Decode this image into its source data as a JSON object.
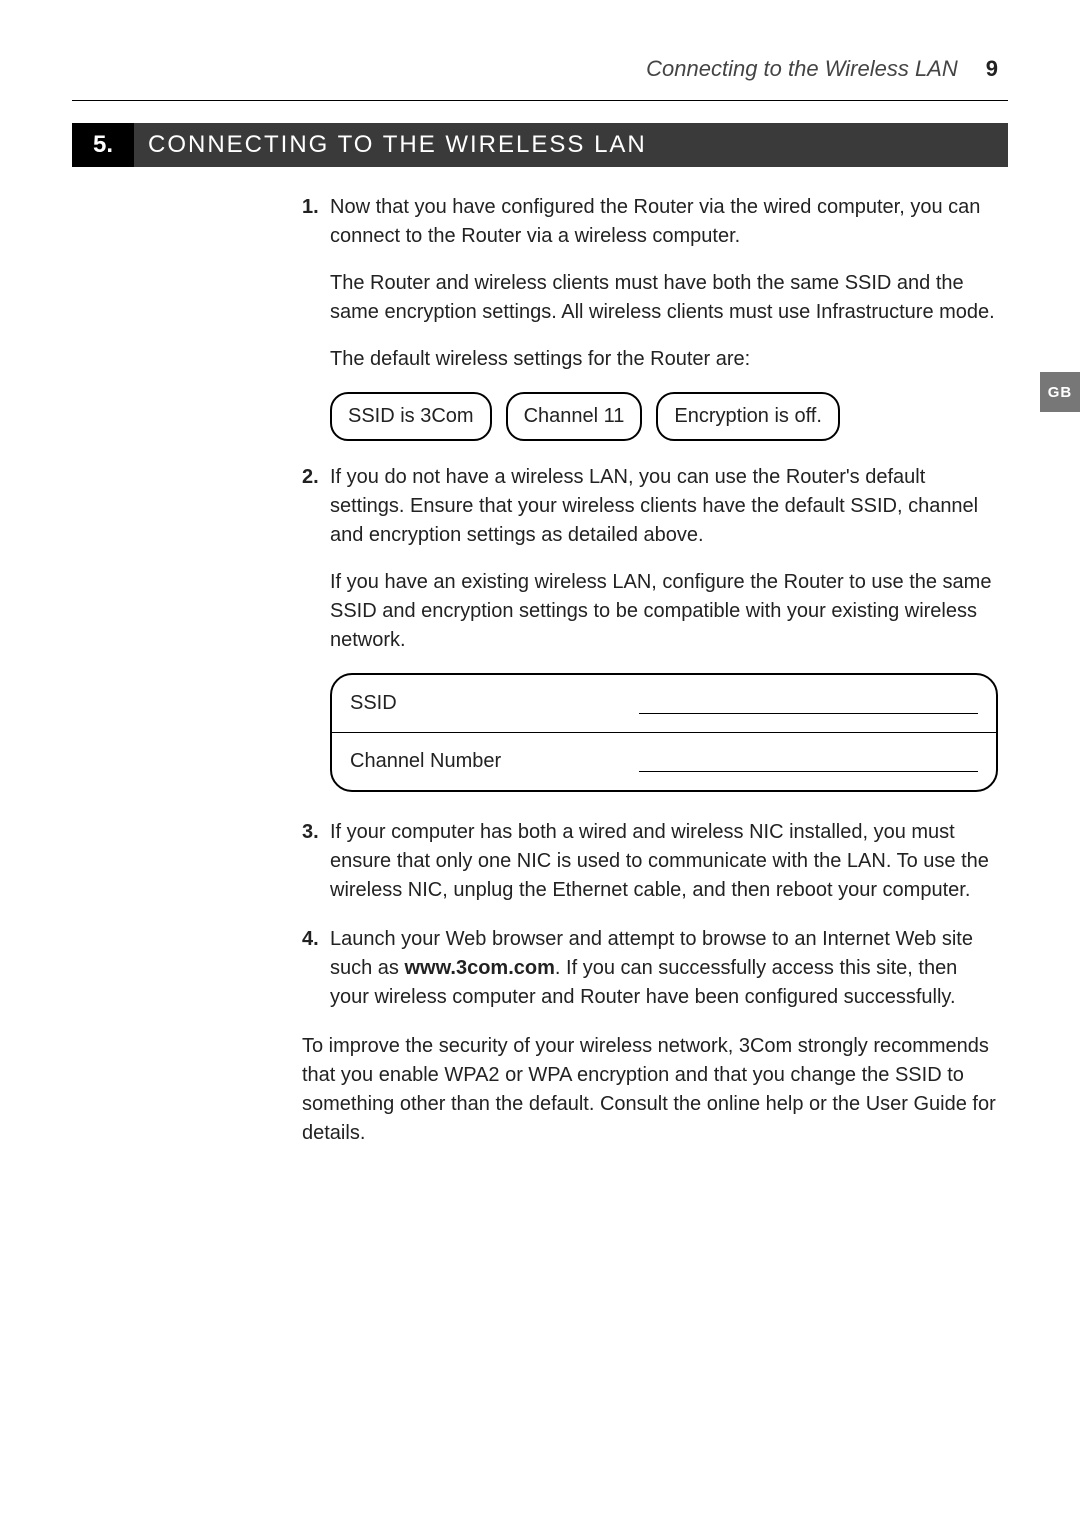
{
  "pageHeader": {
    "runningTitle": "Connecting to the Wireless LAN",
    "pageNumber": "9"
  },
  "sideTab": "GB",
  "section": {
    "number": "5.",
    "title": "CONNECTING TO THE WIRELESS LAN"
  },
  "steps": {
    "s1": {
      "num": "1.",
      "p1": "Now that you have configured the Router via the wired computer, you can connect to the Router via a wireless computer.",
      "p2": "The Router and wireless clients must have both the same SSID and the same encryption settings. All wireless clients must use Infrastructure mode.",
      "p3": "The default wireless settings for the Router are:"
    },
    "pills": {
      "a": "SSID is 3Com",
      "b": "Channel 11",
      "c": "Encryption is off."
    },
    "s2": {
      "num": "2.",
      "p1": "If you do not have a wireless LAN, you can use the Router's default settings. Ensure that your wireless clients have the default SSID, channel and encryption settings as detailed above.",
      "p2": "If you have an existing wireless LAN, configure the Router to use the same SSID and encryption settings to be compatible with your existing wireless network."
    },
    "table": {
      "r1label": "SSID",
      "r2label": "Channel Number"
    },
    "s3": {
      "num": "3.",
      "p1": "If your computer has both a wired and wireless NIC installed, you must ensure that only one NIC is used to communicate with the LAN. To use the wireless NIC, unplug the Ethernet cable, and then reboot your computer."
    },
    "s4": {
      "num": "4.",
      "p1a": "Launch your Web browser and attempt to browse to an Internet Web site such as ",
      "bold": "www.3com.com",
      "p1b": ". If you can successfully access this site, then your wireless computer and Router have been configured successfully."
    }
  },
  "closing": "To improve the security of your wireless network, 3Com strongly recommends that you enable WPA2 or WPA encryption and that you change the SSID to something other than the default. Consult the online help or the User Guide for details."
}
